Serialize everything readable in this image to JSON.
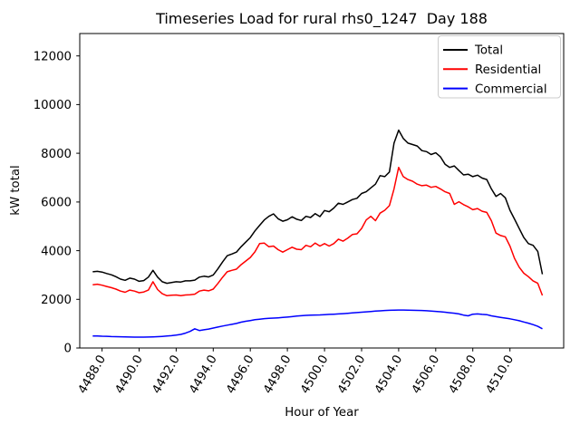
{
  "chart_data": {
    "type": "line",
    "title": "Timeseries Load for rural rhs0_1247  Day 188",
    "xlabel": "Hour of Year",
    "ylabel": "kW total",
    "xlim": [
      4486.8,
      4512.9
    ],
    "ylim": [
      0,
      12920
    ],
    "grid": false,
    "legend_position": "upper right",
    "background_color": "#ffffff",
    "axis_color": "#000000",
    "legend_border_color": "#cccccc",
    "x_ticks": [
      4488,
      4490,
      4492,
      4494,
      4496,
      4498,
      4500,
      4502,
      4504,
      4506,
      4508,
      4510
    ],
    "x_tick_labels": [
      "4488.0",
      "4490.0",
      "4492.0",
      "4494.0",
      "4496.0",
      "4498.0",
      "4500.0",
      "4502.0",
      "4504.0",
      "4506.0",
      "4508.0",
      "4510.0"
    ],
    "y_ticks": [
      0,
      2000,
      4000,
      6000,
      8000,
      10000,
      12000
    ],
    "y_tick_labels": [
      "0",
      "2000",
      "4000",
      "6000",
      "8000",
      "10000",
      "12000"
    ],
    "x": [
      4487.5,
      4487.75,
      4488.0,
      4488.25,
      4488.5,
      4488.75,
      4489.0,
      4489.25,
      4489.5,
      4489.75,
      4490.0,
      4490.25,
      4490.5,
      4490.75,
      4491.0,
      4491.25,
      4491.5,
      4491.75,
      4492.0,
      4492.25,
      4492.5,
      4492.75,
      4493.0,
      4493.25,
      4493.5,
      4493.75,
      4494.0,
      4494.25,
      4494.5,
      4494.75,
      4495.0,
      4495.25,
      4495.5,
      4495.75,
      4496.0,
      4496.25,
      4496.5,
      4496.75,
      4497.0,
      4497.25,
      4497.5,
      4497.75,
      4498.0,
      4498.25,
      4498.5,
      4498.75,
      4499.0,
      4499.25,
      4499.5,
      4499.75,
      4500.0,
      4500.25,
      4500.5,
      4500.75,
      4501.0,
      4501.25,
      4501.5,
      4501.75,
      4502.0,
      4502.25,
      4502.5,
      4502.75,
      4503.0,
      4503.25,
      4503.5,
      4503.75,
      4504.0,
      4504.25,
      4504.5,
      4504.75,
      4505.0,
      4505.25,
      4505.5,
      4505.75,
      4506.0,
      4506.25,
      4506.5,
      4506.75,
      4507.0,
      4507.25,
      4507.5,
      4507.75,
      4508.0,
      4508.25,
      4508.5,
      4508.75,
      4509.0,
      4509.25,
      4509.5,
      4509.75,
      4510.0,
      4510.25,
      4510.5,
      4510.75,
      4511.0,
      4511.25,
      4511.5,
      4511.75
    ],
    "series": [
      {
        "name": "Total",
        "color": "#000000",
        "values": [
          3130,
          3150,
          3120,
          3060,
          3010,
          2930,
          2830,
          2780,
          2870,
          2830,
          2740,
          2770,
          2910,
          3190,
          2910,
          2720,
          2660,
          2690,
          2720,
          2710,
          2760,
          2760,
          2790,
          2910,
          2950,
          2920,
          3000,
          3250,
          3530,
          3790,
          3860,
          3940,
          4160,
          4350,
          4540,
          4810,
          5040,
          5260,
          5410,
          5510,
          5310,
          5210,
          5270,
          5390,
          5290,
          5240,
          5410,
          5360,
          5520,
          5400,
          5650,
          5600,
          5750,
          5950,
          5900,
          6000,
          6100,
          6150,
          6350,
          6420,
          6580,
          6730,
          7080,
          7040,
          7230,
          8420,
          8950,
          8610,
          8420,
          8360,
          8300,
          8110,
          8070,
          7950,
          8020,
          7860,
          7550,
          7420,
          7480,
          7290,
          7110,
          7140,
          7040,
          7100,
          6980,
          6920,
          6540,
          6230,
          6350,
          6170,
          5660,
          5290,
          4910,
          4540,
          4290,
          4220,
          3970,
          3030
        ]
      },
      {
        "name": "Residential",
        "color": "#ff0000",
        "values": [
          2600,
          2620,
          2580,
          2530,
          2480,
          2420,
          2340,
          2290,
          2380,
          2340,
          2270,
          2300,
          2380,
          2720,
          2400,
          2230,
          2150,
          2170,
          2180,
          2150,
          2180,
          2190,
          2210,
          2340,
          2380,
          2350,
          2420,
          2650,
          2900,
          3130,
          3190,
          3240,
          3420,
          3570,
          3720,
          3950,
          4290,
          4310,
          4160,
          4190,
          4040,
          3940,
          4040,
          4140,
          4060,
          4040,
          4220,
          4160,
          4310,
          4190,
          4290,
          4190,
          4290,
          4470,
          4390,
          4510,
          4660,
          4690,
          4910,
          5260,
          5410,
          5230,
          5540,
          5660,
          5850,
          6540,
          7420,
          7040,
          6920,
          6850,
          6730,
          6670,
          6690,
          6600,
          6640,
          6540,
          6420,
          6350,
          5900,
          6010,
          5890,
          5800,
          5680,
          5730,
          5620,
          5570,
          5230,
          4720,
          4620,
          4570,
          4190,
          3680,
          3320,
          3070,
          2930,
          2760,
          2660,
          2160
        ]
      },
      {
        "name": "Commercial",
        "color": "#0000ff",
        "values": [
          490,
          495,
          485,
          480,
          470,
          465,
          460,
          455,
          450,
          448,
          447,
          448,
          452,
          458,
          465,
          475,
          490,
          508,
          528,
          560,
          610,
          680,
          790,
          720,
          750,
          780,
          820,
          860,
          900,
          940,
          970,
          1010,
          1060,
          1100,
          1130,
          1160,
          1185,
          1205,
          1220,
          1230,
          1240,
          1255,
          1270,
          1290,
          1310,
          1325,
          1340,
          1350,
          1355,
          1360,
          1370,
          1380,
          1390,
          1400,
          1410,
          1425,
          1440,
          1455,
          1470,
          1485,
          1500,
          1515,
          1525,
          1540,
          1550,
          1555,
          1560,
          1560,
          1555,
          1550,
          1545,
          1540,
          1530,
          1520,
          1505,
          1490,
          1470,
          1450,
          1430,
          1400,
          1350,
          1320,
          1390,
          1400,
          1380,
          1370,
          1320,
          1290,
          1260,
          1230,
          1200,
          1160,
          1120,
          1070,
          1020,
          960,
          890,
          790
        ]
      }
    ]
  }
}
